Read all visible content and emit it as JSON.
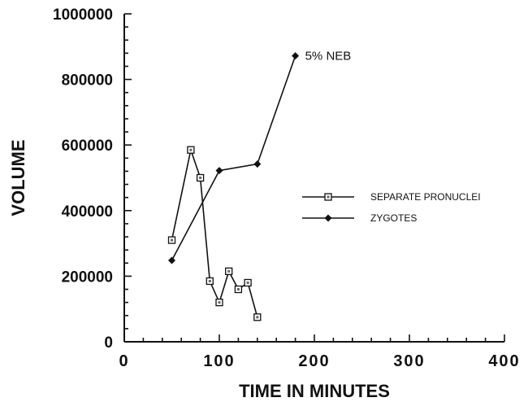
{
  "chart_data": {
    "type": "line",
    "title": "",
    "xlabel": "TIME IN MINUTES",
    "ylabel": "VOLUME",
    "xlim": [
      0,
      400
    ],
    "ylim": [
      0,
      1000000
    ],
    "x_ticks": [
      0,
      100,
      200,
      300,
      400
    ],
    "y_ticks": [
      0,
      200000,
      400000,
      600000,
      800000,
      1000000
    ],
    "grid": false,
    "legend_position": "right",
    "series": [
      {
        "name": "SEPARATE PRONUCLEI",
        "marker": "open-square",
        "x": [
          50,
          70,
          80,
          90,
          100,
          110,
          120,
          130,
          140
        ],
        "y": [
          310000,
          585000,
          500000,
          185000,
          120000,
          215000,
          160000,
          180000,
          75000
        ]
      },
      {
        "name": "ZYGOTES",
        "marker": "filled-diamond",
        "x": [
          50,
          100,
          140,
          180
        ],
        "y": [
          248000,
          522000,
          542000,
          872000
        ]
      }
    ],
    "annotations": [
      {
        "text": "5% NEB",
        "x": 180,
        "y": 872000
      }
    ]
  }
}
